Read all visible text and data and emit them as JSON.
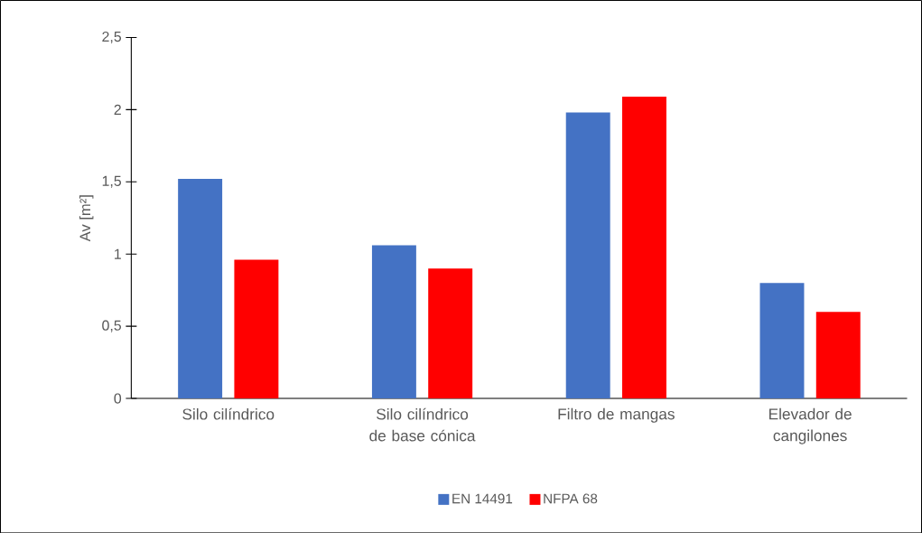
{
  "chart_data": {
    "type": "bar",
    "ylabel": "Av [m²]",
    "categories": [
      "Silo cilíndrico",
      "Silo cilíndrico de base cónica",
      "Filtro de mangas",
      "Elevador de cangilones"
    ],
    "series": [
      {
        "name": "EN 14491",
        "color": "#4472c4",
        "values": [
          1.52,
          1.06,
          1.98,
          0.8
        ]
      },
      {
        "name": "NFPA 68",
        "color": "#ff0000",
        "values": [
          0.96,
          0.9,
          2.09,
          0.6
        ]
      }
    ],
    "ylim": [
      0,
      2.5
    ],
    "yticks": [
      0,
      {
        "value": 0.5,
        "label": "0,5"
      },
      1,
      {
        "value": 1.5,
        "label": "1,5"
      },
      2,
      {
        "value": 2.5,
        "label": "2,5"
      }
    ],
    "legend": "bottom"
  }
}
